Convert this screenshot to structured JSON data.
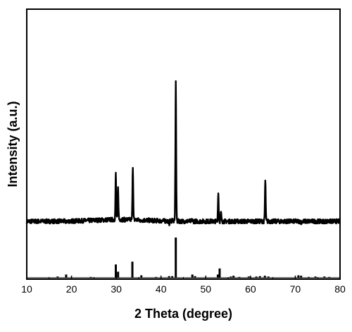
{
  "chart_data": {
    "type": "line",
    "title": "",
    "xlabel": "2 Theta (degree)",
    "ylabel": "Intensity (a.u.)",
    "xlim": [
      10,
      80
    ],
    "x_ticks": [
      10,
      20,
      30,
      40,
      50,
      60,
      70,
      80
    ],
    "y_ticks_shown": false,
    "grid": false,
    "legend": "none",
    "colors": {
      "line": "#000000",
      "frame": "#000000",
      "background": "#ffffff"
    },
    "series": [
      {
        "kind": "measured-pattern",
        "baseline": 0.06,
        "noise_amplitude": 0.015,
        "peaks": [
          {
            "x": 18.8,
            "y": 0.05
          },
          {
            "x": 29.9,
            "y": 0.37
          },
          {
            "x": 30.4,
            "y": 0.27
          },
          {
            "x": 33.7,
            "y": 0.42
          },
          {
            "x": 35.5,
            "y": 0.05
          },
          {
            "x": 41.8,
            "y": 0.04
          },
          {
            "x": 42.5,
            "y": 0.07
          },
          {
            "x": 43.3,
            "y": 1.0
          },
          {
            "x": 47.0,
            "y": 0.07
          },
          {
            "x": 52.8,
            "y": 0.25
          },
          {
            "x": 53.4,
            "y": 0.12
          },
          {
            "x": 56.2,
            "y": 0.06
          },
          {
            "x": 63.3,
            "y": 0.33
          },
          {
            "x": 70.8,
            "y": 0.06
          },
          {
            "x": 71.3,
            "y": 0.05
          }
        ]
      },
      {
        "kind": "reference-sticks",
        "sticks": [
          {
            "x": 16.9,
            "y": 0.03
          },
          {
            "x": 18.8,
            "y": 0.08
          },
          {
            "x": 24.3,
            "y": 0.02
          },
          {
            "x": 29.9,
            "y": 0.33
          },
          {
            "x": 30.4,
            "y": 0.15
          },
          {
            "x": 33.6,
            "y": 0.4
          },
          {
            "x": 35.6,
            "y": 0.06
          },
          {
            "x": 38.9,
            "y": 0.02
          },
          {
            "x": 41.8,
            "y": 0.04
          },
          {
            "x": 42.5,
            "y": 0.04
          },
          {
            "x": 43.3,
            "y": 1.0
          },
          {
            "x": 47.0,
            "y": 0.08
          },
          {
            "x": 47.6,
            "y": 0.04
          },
          {
            "x": 52.7,
            "y": 0.08
          },
          {
            "x": 53.1,
            "y": 0.23
          },
          {
            "x": 55.6,
            "y": 0.03
          },
          {
            "x": 56.2,
            "y": 0.05
          },
          {
            "x": 57.5,
            "y": 0.02
          },
          {
            "x": 59.6,
            "y": 0.03
          },
          {
            "x": 61.3,
            "y": 0.03
          },
          {
            "x": 62.1,
            "y": 0.04
          },
          {
            "x": 63.2,
            "y": 0.05
          },
          {
            "x": 64.0,
            "y": 0.03
          },
          {
            "x": 70.7,
            "y": 0.06
          },
          {
            "x": 71.3,
            "y": 0.05
          },
          {
            "x": 73.0,
            "y": 0.02
          },
          {
            "x": 74.5,
            "y": 0.03
          },
          {
            "x": 76.5,
            "y": 0.03
          },
          {
            "x": 77.6,
            "y": 0.02
          }
        ]
      }
    ]
  }
}
